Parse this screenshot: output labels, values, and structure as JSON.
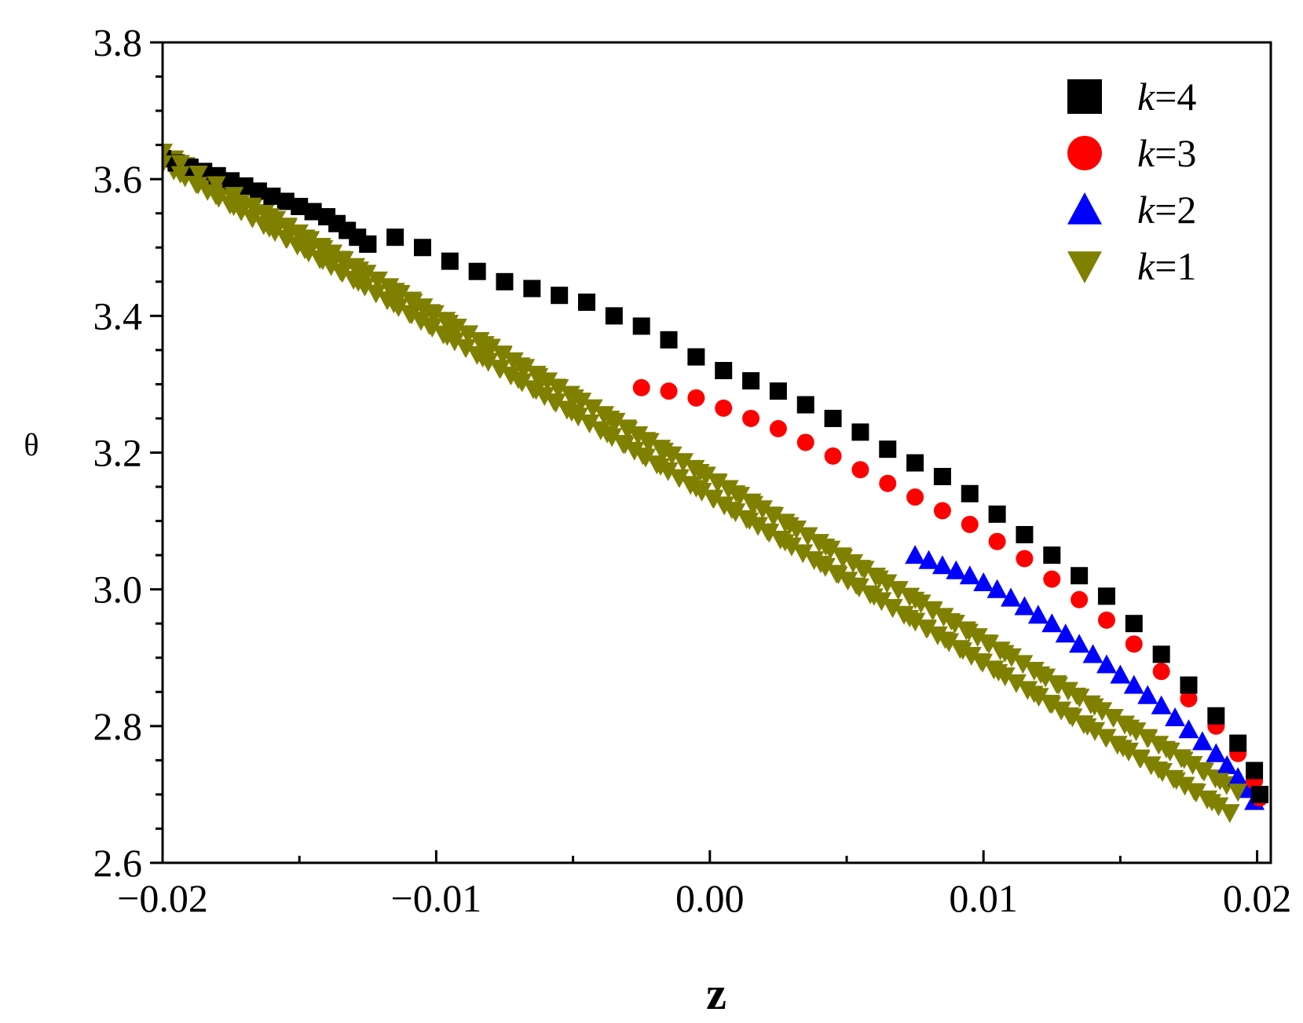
{
  "chart_data": {
    "type": "scatter",
    "title": "",
    "xlabel": "z",
    "ylabel": "θ",
    "xlim": [
      -0.02,
      0.0205
    ],
    "ylim": [
      2.6,
      3.8
    ],
    "xticks": [
      -0.02,
      -0.01,
      0.0,
      0.01,
      0.02
    ],
    "xtick_labels": [
      "−0.02",
      "−0.01",
      "0.00",
      "0.01",
      "0.02"
    ],
    "yticks": [
      2.6,
      2.8,
      3.0,
      3.2,
      3.4,
      3.6,
      3.8
    ],
    "ytick_labels": [
      "2.6",
      "2.8",
      "3.0",
      "3.2",
      "3.4",
      "3.6",
      "3.8"
    ],
    "grid": false,
    "legend_position": "top-right",
    "series": [
      {
        "name": "k=4",
        "legend_italic": "k",
        "legend_rest": "=4",
        "color": "#000000",
        "marker": "square",
        "points": [
          [
            -0.0125,
            3.505
          ],
          [
            -0.0115,
            3.515
          ],
          [
            -0.0105,
            3.5
          ],
          [
            -0.0095,
            3.48
          ],
          [
            -0.0085,
            3.465
          ],
          [
            -0.0075,
            3.45
          ],
          [
            -0.0065,
            3.44
          ],
          [
            -0.0055,
            3.43
          ],
          [
            -0.0045,
            3.42
          ],
          [
            -0.0035,
            3.4
          ],
          [
            -0.0025,
            3.385
          ],
          [
            -0.0015,
            3.365
          ],
          [
            -0.0005,
            3.34
          ],
          [
            0.0005,
            3.32
          ],
          [
            0.0015,
            3.305
          ],
          [
            0.0025,
            3.29
          ],
          [
            0.0035,
            3.27
          ],
          [
            0.0045,
            3.25
          ],
          [
            0.0055,
            3.23
          ],
          [
            0.0065,
            3.205
          ],
          [
            0.0075,
            3.185
          ],
          [
            0.0085,
            3.165
          ],
          [
            0.0095,
            3.14
          ],
          [
            0.0105,
            3.11
          ],
          [
            0.0115,
            3.08
          ],
          [
            0.0125,
            3.05
          ],
          [
            0.0135,
            3.02
          ],
          [
            0.0145,
            2.99
          ],
          [
            0.0155,
            2.95
          ],
          [
            0.0165,
            2.905
          ],
          [
            0.0175,
            2.86
          ],
          [
            0.0185,
            2.815
          ],
          [
            0.0193,
            2.775
          ],
          [
            0.0199,
            2.735
          ],
          [
            0.0201,
            2.7
          ]
        ],
        "return_points": [
          [
            -0.02,
            3.63
          ],
          [
            -0.018,
            3.605
          ],
          [
            -0.016,
            3.575
          ],
          [
            -0.014,
            3.545
          ],
          [
            -0.0125,
            3.505
          ]
        ]
      },
      {
        "name": "k=3",
        "legend_italic": "k",
        "legend_rest": "=3",
        "color": "#ff0000",
        "marker": "circle",
        "points": [
          [
            -0.0025,
            3.295
          ],
          [
            -0.0015,
            3.29
          ],
          [
            -0.0005,
            3.28
          ],
          [
            0.0005,
            3.265
          ],
          [
            0.0015,
            3.25
          ],
          [
            0.0025,
            3.235
          ],
          [
            0.0035,
            3.215
          ],
          [
            0.0045,
            3.195
          ],
          [
            0.0055,
            3.175
          ],
          [
            0.0065,
            3.155
          ],
          [
            0.0075,
            3.135
          ],
          [
            0.0085,
            3.115
          ],
          [
            0.0095,
            3.095
          ],
          [
            0.0105,
            3.07
          ],
          [
            0.0115,
            3.045
          ],
          [
            0.0125,
            3.015
          ],
          [
            0.0135,
            2.985
          ],
          [
            0.0145,
            2.955
          ],
          [
            0.0155,
            2.92
          ],
          [
            0.0165,
            2.88
          ],
          [
            0.0175,
            2.84
          ],
          [
            0.0185,
            2.8
          ],
          [
            0.0193,
            2.76
          ],
          [
            0.0199,
            2.72
          ],
          [
            0.0201,
            2.695
          ]
        ]
      },
      {
        "name": "k=2",
        "legend_italic": "k",
        "legend_rest": "=2",
        "color": "#0000ff",
        "marker": "triangle-up",
        "points": [
          [
            0.0075,
            3.05
          ],
          [
            0.0085,
            3.035
          ],
          [
            0.0095,
            3.02
          ],
          [
            0.0105,
            3.0
          ],
          [
            0.0115,
            2.975
          ],
          [
            0.0125,
            2.95
          ],
          [
            0.0135,
            2.92
          ],
          [
            0.0145,
            2.89
          ],
          [
            0.0155,
            2.86
          ],
          [
            0.0165,
            2.83
          ],
          [
            0.0175,
            2.795
          ],
          [
            0.0185,
            2.76
          ],
          [
            0.0193,
            2.725
          ],
          [
            0.0199,
            2.69
          ]
        ]
      },
      {
        "name": "k=1",
        "legend_italic": "k",
        "legend_rest": "=1",
        "color": "#808000",
        "marker": "triangle-down",
        "upper_branch": [
          [
            -0.02,
            3.63
          ],
          [
            0.0193,
            2.695
          ]
        ],
        "lower_branch": [
          [
            -0.02,
            3.63
          ],
          [
            0.019,
            2.68
          ]
        ]
      }
    ]
  }
}
